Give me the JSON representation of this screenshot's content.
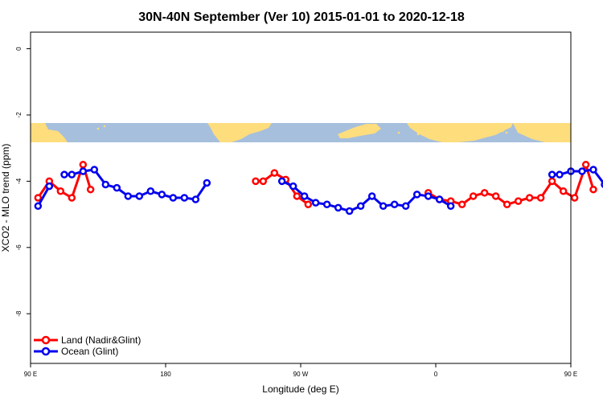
{
  "chart_data": {
    "type": "line",
    "title": "30N-40N September (Ver 10)   2015-01-01 to 2020-12-18",
    "xlabel": "Longitude (deg E)",
    "ylabel": "XCO2 - MLO trend (ppm)",
    "xlim": [
      90,
      450
    ],
    "ylim": [
      -9.5,
      0.5
    ],
    "x_ticks": [
      {
        "value": 90,
        "label": "90 E"
      },
      {
        "value": 180,
        "label": "180"
      },
      {
        "value": 270,
        "label": "90 W"
      },
      {
        "value": 360,
        "label": "0"
      },
      {
        "value": 450,
        "label": "90 E"
      },
      {
        "value": 540,
        "label": "180"
      }
    ],
    "y_ticks": [
      {
        "value": 0,
        "label": "0"
      },
      {
        "value": -2,
        "label": "-2"
      },
      {
        "value": -4,
        "label": "-4"
      },
      {
        "value": -6,
        "label": "-6"
      },
      {
        "value": -8,
        "label": "-8"
      }
    ],
    "legend_position": "bottom-left",
    "colors": {
      "land": "#ff0000",
      "ocean": "#0000ee",
      "map_land": "#fedd7d",
      "map_ocean": "#a6bfdd"
    },
    "series": [
      {
        "name": "Land (Nadir&Glint)",
        "color": "#ff0000",
        "segments": [
          [
            [
              95,
              -4.5
            ],
            [
              102.5,
              -4.0
            ],
            [
              110,
              -4.3
            ],
            [
              117.5,
              -4.5
            ],
            [
              125,
              -3.5
            ],
            [
              130,
              -4.25
            ]
          ],
          [
            [
              240,
              -4.0
            ],
            [
              245,
              -4.0
            ],
            [
              252.5,
              -3.75
            ],
            [
              260,
              -3.95
            ],
            [
              267.5,
              -4.45
            ],
            [
              275,
              -4.7
            ]
          ],
          [
            [
              355,
              -4.35
            ],
            [
              362.5,
              -4.55
            ],
            [
              370,
              -4.6
            ],
            [
              377.5,
              -4.7
            ],
            [
              385,
              -4.45
            ],
            [
              392.5,
              -4.35
            ],
            [
              400,
              -4.45
            ],
            [
              407.5,
              -4.7
            ],
            [
              415,
              -4.6
            ],
            [
              422.5,
              -4.5
            ],
            [
              430,
              -4.5
            ],
            [
              437.5,
              -4.0
            ],
            [
              445,
              -4.3
            ],
            [
              452.5,
              -4.5
            ],
            [
              460,
              -3.5
            ],
            [
              465,
              -4.25
            ]
          ]
        ]
      },
      {
        "name": "Ocean (Glint)",
        "color": "#0000ee",
        "segments": [
          [
            [
              95,
              -4.75
            ],
            [
              102.5,
              -4.15
            ]
          ],
          [
            [
              112.5,
              -3.8
            ],
            [
              117.5,
              -3.8
            ],
            [
              125,
              -3.7
            ],
            [
              132.5,
              -3.65
            ],
            [
              140,
              -4.1
            ],
            [
              147.5,
              -4.2
            ],
            [
              155,
              -4.45
            ],
            [
              162.5,
              -4.45
            ],
            [
              170,
              -4.3
            ],
            [
              177.5,
              -4.4
            ],
            [
              185,
              -4.5
            ],
            [
              192.5,
              -4.5
            ],
            [
              200,
              -4.55
            ],
            [
              207.5,
              -4.05
            ]
          ],
          [
            [
              257.5,
              -4.0
            ],
            [
              265,
              -4.15
            ],
            [
              272.5,
              -4.45
            ],
            [
              280,
              -4.65
            ],
            [
              287.5,
              -4.7
            ],
            [
              295,
              -4.8
            ],
            [
              302.5,
              -4.9
            ],
            [
              310,
              -4.75
            ],
            [
              317.5,
              -4.45
            ],
            [
              325,
              -4.75
            ],
            [
              332.5,
              -4.7
            ],
            [
              340,
              -4.75
            ],
            [
              347.5,
              -4.4
            ],
            [
              355,
              -4.45
            ],
            [
              362.5,
              -4.55
            ],
            [
              370,
              -4.75
            ]
          ],
          [
            [
              437.5,
              -3.8
            ],
            [
              442.5,
              -3.8
            ],
            [
              450,
              -3.7
            ],
            [
              457.5,
              -3.7
            ],
            [
              465,
              -3.65
            ],
            [
              472.5,
              -4.1
            ],
            [
              480,
              -4.15
            ],
            [
              487.5,
              -4.45
            ]
          ]
        ]
      }
    ]
  }
}
